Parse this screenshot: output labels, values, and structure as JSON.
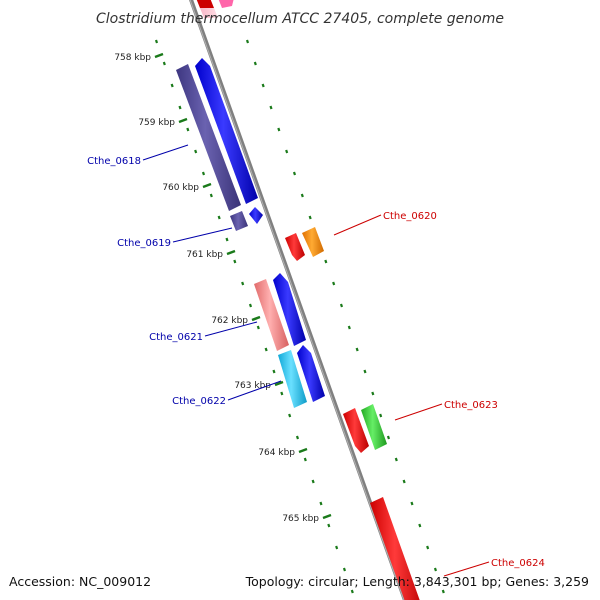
{
  "title": "Clostridium thermocellum ATCC 27405, complete genome",
  "accession": "Accession: NC_009012",
  "summary": "Topology: circular; Length: 3,843,301 bp; Genes: 3,259",
  "ticks": [
    "758 kbp",
    "759 kbp",
    "760 kbp",
    "761 kbp",
    "762 kbp",
    "763 kbp",
    "764 kbp",
    "765 kbp"
  ],
  "genes": [
    {
      "label": "Cthe_0618",
      "color": "#0000aa"
    },
    {
      "label": "Cthe_0619",
      "color": "#0000aa"
    },
    {
      "label": "Cthe_0620",
      "color": "#cc0000"
    },
    {
      "label": "Cthe_0621",
      "color": "#0000aa"
    },
    {
      "label": "Cthe_0622",
      "color": "#0000aa"
    },
    {
      "label": "Cthe_0623",
      "color": "#cc0000"
    },
    {
      "label": "Cthe_0624",
      "color": "#cc0000"
    }
  ],
  "colors": {
    "backbone": "#808080",
    "tick_dots": "#1a7a1a",
    "cds_forward": "#0000ee",
    "cds_reverse": "#ee0000",
    "orange": "#ff8c00",
    "green": "#33cc33",
    "purple": "#4b4494",
    "pink": "#f08080",
    "cyan": "#1ec8f0"
  }
}
